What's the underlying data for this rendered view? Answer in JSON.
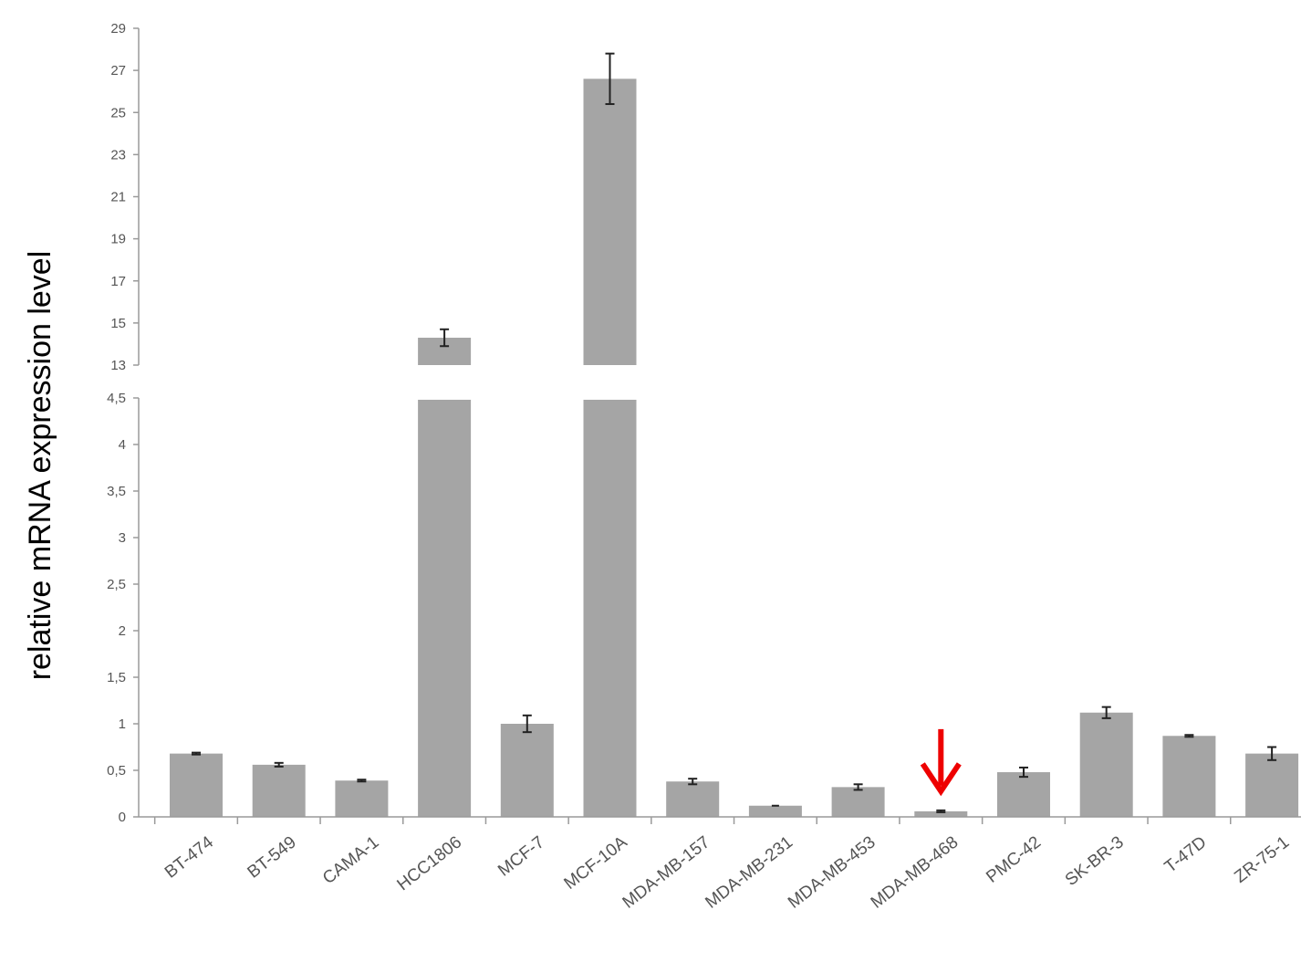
{
  "chart_data": {
    "type": "bar",
    "ylabel": "relative mRNA expression level",
    "xlabel": "",
    "categories": [
      "BT-474",
      "BT-549",
      "CAMA-1",
      "HCC1806",
      "MCF-7",
      "MCF-10A",
      "MDA-MB-157",
      "MDA-MB-231",
      "MDA-MB-453",
      "MDA-MB-468",
      "PMC-42",
      "SK-BR-3",
      "T-47D",
      "ZR-75-1"
    ],
    "values": [
      0.68,
      0.56,
      0.39,
      14.3,
      1.0,
      26.6,
      0.38,
      0.12,
      0.32,
      0.06,
      0.48,
      1.12,
      0.87,
      0.68
    ],
    "errors": [
      0.01,
      0.02,
      0.01,
      0.4,
      0.09,
      1.2,
      0.03,
      0.0,
      0.03,
      0.01,
      0.05,
      0.06,
      0.01,
      0.07
    ],
    "broken_axis": true,
    "lower_axis": {
      "ylim": [
        0,
        4.5
      ],
      "ticks": [
        "0",
        "0,5",
        "1",
        "1,5",
        "2",
        "2,5",
        "3",
        "3,5",
        "4",
        "4,5"
      ]
    },
    "upper_axis": {
      "ylim": [
        13,
        29
      ],
      "ticks": [
        "13",
        "15",
        "17",
        "19",
        "21",
        "23",
        "25",
        "27",
        "29"
      ]
    },
    "highlight": {
      "category": "MDA-MB-468",
      "marker": "down-arrow",
      "color": "#ee0000"
    },
    "bar_color": "#a5a5a5",
    "grid": false,
    "legend": "none"
  }
}
